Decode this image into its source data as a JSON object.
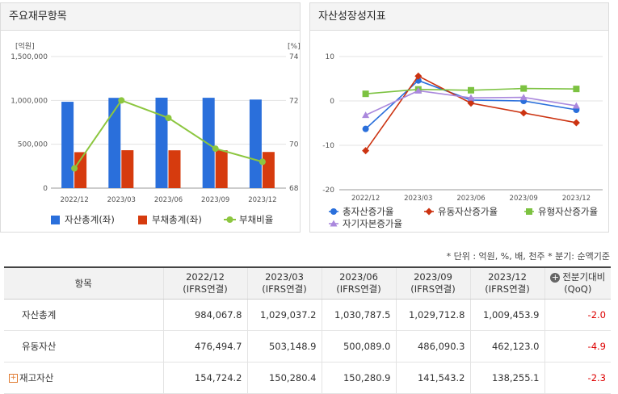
{
  "panels": {
    "left_title": "주요재무항목",
    "right_title": "자산성장성지표"
  },
  "colors": {
    "asset": "#2a6fdb",
    "liab": "#d63b0e",
    "ratio": "#8cc63f",
    "s1": "#2a6fdb",
    "s2": "#cc3311",
    "s3": "#7cc241",
    "s4": "#aa88dd"
  },
  "chart_data": [
    {
      "type": "bar",
      "title": "",
      "left_unit": "[억원]",
      "right_unit": "[%]",
      "categories": [
        "2022/12",
        "2023/03",
        "2023/06",
        "2023/09",
        "2023/12"
      ],
      "yticks_left": [
        "0",
        "500,000",
        "1,000,000",
        "1,500,000"
      ],
      "yticks_right": [
        "68",
        "70",
        "72",
        "74"
      ],
      "ylim_left": [
        0,
        1500000
      ],
      "ylim_right": [
        68,
        74
      ],
      "series": [
        {
          "name": "자산총계(좌)",
          "kind": "bar",
          "axis": "left",
          "values": [
            984067.8,
            1029037.2,
            1030787.5,
            1029712.8,
            1009453.9
          ]
        },
        {
          "name": "부채총계(좌)",
          "kind": "bar",
          "axis": "left",
          "values": [
            410000,
            432000,
            431000,
            431000,
            412000
          ]
        },
        {
          "name": "부채비율",
          "kind": "line",
          "axis": "right",
          "values": [
            68.9,
            72.0,
            71.2,
            69.8,
            69.2
          ]
        }
      ]
    },
    {
      "type": "line",
      "title": "",
      "categories": [
        "2022/12",
        "2023/03",
        "2023/06",
        "2023/09",
        "2023/12"
      ],
      "yticks": [
        "-20",
        "-10",
        "0",
        "10"
      ],
      "ylim": [
        -20,
        10
      ],
      "series": [
        {
          "name": "총자산증가율",
          "marker": "circle",
          "values": [
            -6.3,
            4.6,
            0.2,
            0.0,
            -2.0
          ]
        },
        {
          "name": "유동자산증가율",
          "marker": "diamond",
          "values": [
            -11.2,
            5.6,
            -0.5,
            -2.7,
            -4.9
          ]
        },
        {
          "name": "유형자산증가율",
          "marker": "square",
          "values": [
            1.6,
            2.6,
            2.4,
            2.8,
            2.7
          ]
        },
        {
          "name": "자기자본증가율",
          "marker": "triangle",
          "values": [
            -3.2,
            2.3,
            0.7,
            0.8,
            -1.1
          ]
        }
      ]
    }
  ],
  "note": "* 단위 : 억원, %, 배, 천주   * 분기: 순액기준",
  "table": {
    "header_label": "항목",
    "columns": [
      {
        "line1": "2022/12",
        "line2": "(IFRS연결)"
      },
      {
        "line1": "2023/03",
        "line2": "(IFRS연결)"
      },
      {
        "line1": "2023/06",
        "line2": "(IFRS연결)"
      },
      {
        "line1": "2023/09",
        "line2": "(IFRS연결)"
      },
      {
        "line1": "2023/12",
        "line2": "(IFRS연결)"
      }
    ],
    "last_col": {
      "line1": "전분기대비",
      "line2": "(QoQ)"
    },
    "rows": [
      {
        "label": "자산총계",
        "values": [
          "984,067.8",
          "1,029,037.2",
          "1,030,787.5",
          "1,029,712.8",
          "1,009,453.9"
        ],
        "qoq": "-2.0"
      },
      {
        "label": "유동자산",
        "values": [
          "476,494.7",
          "503,148.9",
          "500,089.0",
          "486,090.3",
          "462,123.0"
        ],
        "qoq": "-4.9"
      },
      {
        "label": "재고자산",
        "values": [
          "154,724.2",
          "150,280.4",
          "150,280.9",
          "141,543.2",
          "138,255.1"
        ],
        "qoq": "-2.3"
      }
    ]
  }
}
